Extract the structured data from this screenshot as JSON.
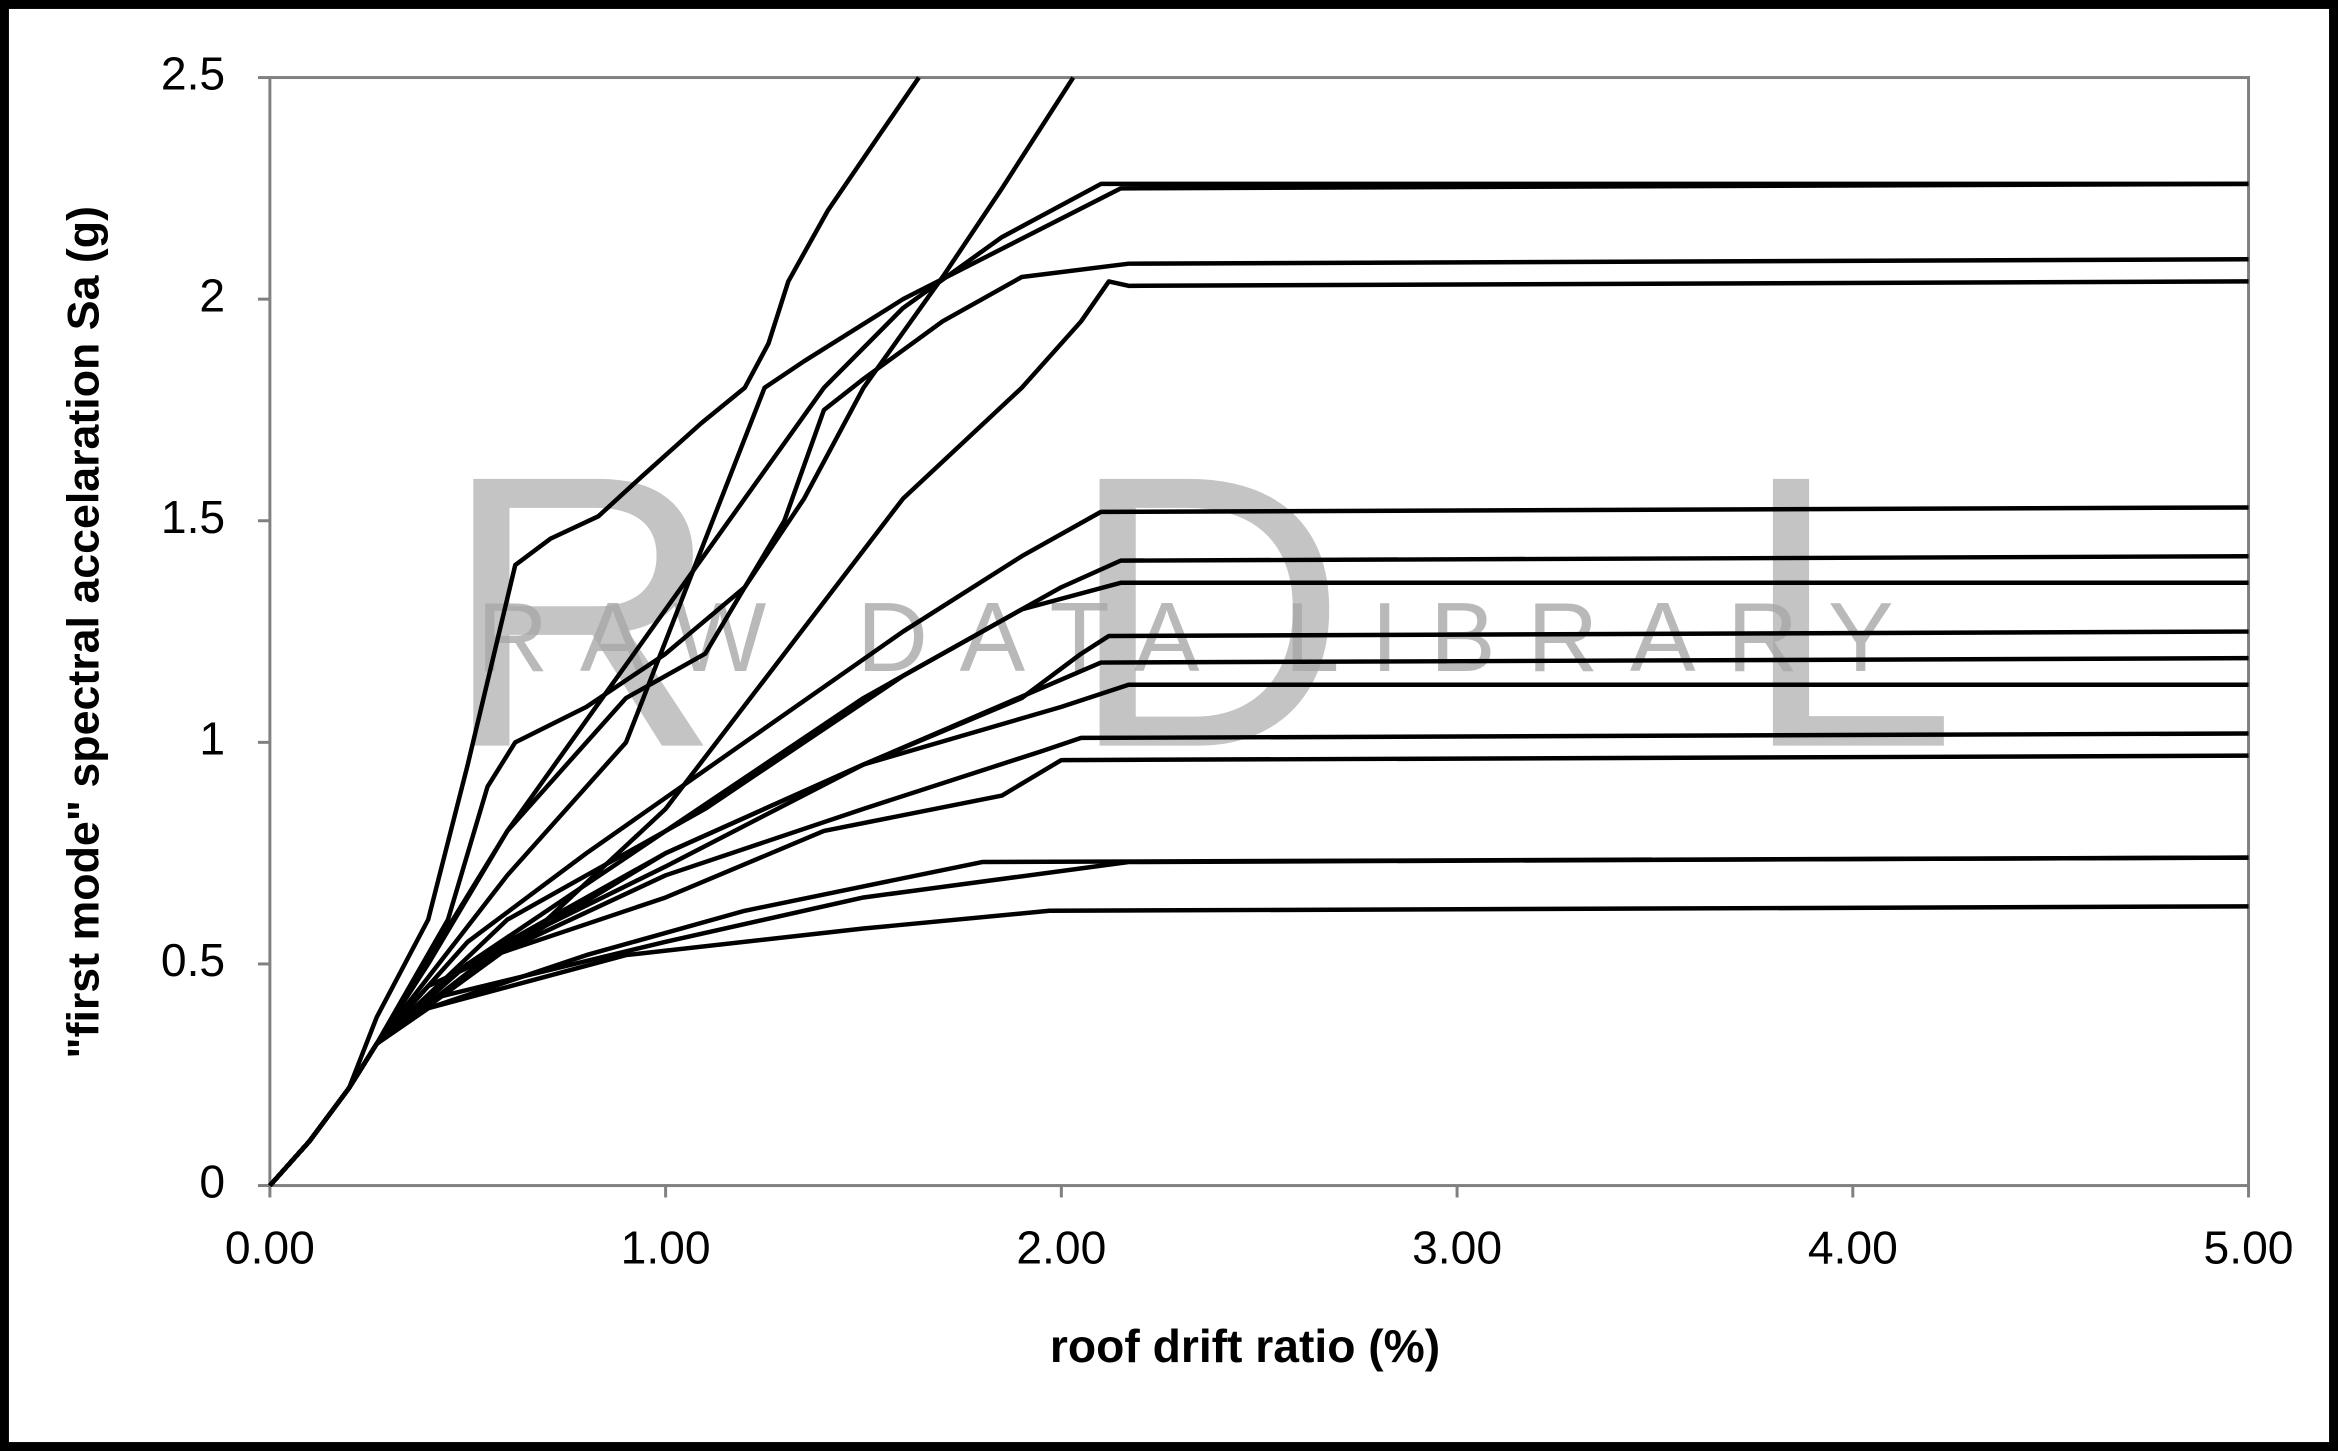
{
  "chart_data": {
    "type": "line",
    "xlabel": "roof drift ratio (%)",
    "ylabel": "\"first mode\" spectral accelaration Sa (g)",
    "watermark_letters": [
      "R",
      "D",
      "L"
    ],
    "watermark": "RAW DATA LIBRARY",
    "xlim": [
      0,
      5
    ],
    "ylim": [
      0,
      2.5
    ],
    "xticks": [
      {
        "value": 0,
        "label": "0.00"
      },
      {
        "value": 1,
        "label": "1.00"
      },
      {
        "value": 2,
        "label": "2.00"
      },
      {
        "value": 3,
        "label": "3.00"
      },
      {
        "value": 4,
        "label": "4.00"
      },
      {
        "value": 5,
        "label": "5.00"
      }
    ],
    "yticks": [
      0,
      0.5,
      1,
      1.5,
      2,
      2.5
    ],
    "grid": false,
    "series": [
      {
        "color": "#000000",
        "x": [
          0,
          0.1,
          0.2,
          0.27,
          0.4,
          0.5,
          0.62,
          0.71,
          0.83,
          0.94,
          1.09,
          1.2,
          1.26,
          1.31,
          1.41,
          1.54,
          1.64
        ],
        "values": [
          0,
          0.1,
          0.22,
          0.38,
          0.6,
          0.95,
          1.4,
          1.46,
          1.51,
          1.6,
          1.72,
          1.8,
          1.9,
          2.04,
          2.2,
          2.37,
          2.5
        ]
      },
      {
        "color": "#000000",
        "x": [
          0,
          0.1,
          0.2,
          0.27,
          0.45,
          0.55,
          0.62,
          0.8,
          1.0,
          1.2,
          1.35,
          1.5,
          1.7,
          1.85,
          2.03
        ],
        "values": [
          0,
          0.1,
          0.22,
          0.32,
          0.6,
          0.9,
          1.0,
          1.08,
          1.2,
          1.35,
          1.55,
          1.8,
          2.05,
          2.25,
          2.5
        ]
      },
      {
        "color": "#000000",
        "x": [
          0,
          0.1,
          0.2,
          0.27,
          0.4,
          0.6,
          0.8,
          1.0,
          1.2,
          1.4,
          1.6,
          1.85,
          2.1,
          5
        ],
        "values": [
          0,
          0.1,
          0.22,
          0.32,
          0.5,
          0.8,
          1.05,
          1.3,
          1.55,
          1.8,
          1.98,
          2.14,
          2.26,
          2.26
        ]
      },
      {
        "color": "#000000",
        "x": [
          0,
          0.1,
          0.2,
          0.27,
          0.6,
          0.9,
          1.25,
          1.35,
          1.6,
          2.15,
          5
        ],
        "values": [
          0,
          0.1,
          0.22,
          0.32,
          0.7,
          1.0,
          1.8,
          1.86,
          2.0,
          2.25,
          2.26
        ]
      },
      {
        "color": "#000000",
        "x": [
          0,
          0.1,
          0.2,
          0.27,
          0.6,
          0.9,
          1.1,
          1.3,
          1.4,
          1.5,
          1.7,
          1.9,
          2.17,
          5
        ],
        "values": [
          0,
          0.1,
          0.22,
          0.32,
          0.8,
          1.1,
          1.2,
          1.5,
          1.75,
          1.82,
          1.95,
          2.05,
          2.08,
          2.09
        ]
      },
      {
        "color": "#000000",
        "x": [
          0,
          0.1,
          0.2,
          0.27,
          0.7,
          1.0,
          1.3,
          1.6,
          1.9,
          2.05,
          2.12,
          2.17,
          5
        ],
        "values": [
          0,
          0.1,
          0.22,
          0.32,
          0.6,
          0.85,
          1.2,
          1.55,
          1.8,
          1.95,
          2.04,
          2.03,
          2.04
        ]
      },
      {
        "color": "#000000",
        "x": [
          0,
          0.1,
          0.2,
          0.27,
          0.5,
          0.8,
          1.2,
          1.6,
          1.9,
          2.1,
          5
        ],
        "values": [
          0,
          0.1,
          0.22,
          0.32,
          0.55,
          0.75,
          1.0,
          1.25,
          1.42,
          1.52,
          1.53
        ]
      },
      {
        "color": "#000000",
        "x": [
          0,
          0.1,
          0.2,
          0.27,
          0.5,
          1.0,
          1.5,
          2.0,
          2.15,
          5
        ],
        "values": [
          0,
          0.1,
          0.22,
          0.32,
          0.5,
          0.8,
          1.1,
          1.35,
          1.41,
          1.42
        ]
      },
      {
        "color": "#000000",
        "x": [
          0,
          0.1,
          0.2,
          0.27,
          0.6,
          1.1,
          1.6,
          1.9,
          2.15,
          5
        ],
        "values": [
          0,
          0.1,
          0.22,
          0.32,
          0.6,
          0.85,
          1.15,
          1.3,
          1.36,
          1.36
        ]
      },
      {
        "color": "#000000",
        "x": [
          0,
          0.1,
          0.2,
          0.27,
          0.5,
          1.0,
          1.5,
          1.9,
          2.05,
          2.12,
          5
        ],
        "values": [
          0,
          0.1,
          0.22,
          0.32,
          0.5,
          0.75,
          0.95,
          1.1,
          1.2,
          1.24,
          1.25
        ]
      },
      {
        "color": "#000000",
        "x": [
          0,
          0.1,
          0.2,
          0.27,
          0.5,
          1.0,
          1.5,
          2.1,
          5
        ],
        "values": [
          0,
          0.1,
          0.22,
          0.32,
          0.5,
          0.72,
          0.95,
          1.18,
          1.19
        ]
      },
      {
        "color": "#000000",
        "x": [
          0,
          0.1,
          0.2,
          0.27,
          0.5,
          1.0,
          1.5,
          2.0,
          2.17,
          5
        ],
        "values": [
          0,
          0.1,
          0.22,
          0.32,
          0.48,
          0.75,
          0.95,
          1.08,
          1.13,
          1.13
        ]
      },
      {
        "color": "#000000",
        "x": [
          0,
          0.1,
          0.2,
          0.27,
          0.4,
          1.0,
          1.5,
          1.95,
          2.05,
          5
        ],
        "values": [
          0,
          0.1,
          0.22,
          0.32,
          0.45,
          0.7,
          0.85,
          0.98,
          1.01,
          1.02
        ]
      },
      {
        "color": "#000000",
        "x": [
          0,
          0.1,
          0.2,
          0.27,
          0.5,
          1.0,
          1.4,
          1.85,
          2.0,
          5
        ],
        "values": [
          0,
          0.1,
          0.22,
          0.32,
          0.5,
          0.65,
          0.8,
          0.88,
          0.96,
          0.97
        ]
      },
      {
        "color": "#000000",
        "x": [
          0,
          0.1,
          0.2,
          0.27,
          0.4,
          0.8,
          1.2,
          1.8,
          5
        ],
        "values": [
          0,
          0.1,
          0.22,
          0.32,
          0.4,
          0.52,
          0.62,
          0.73,
          0.74
        ]
      },
      {
        "color": "#000000",
        "x": [
          0,
          0.1,
          0.2,
          0.27,
          0.4,
          1.0,
          1.5,
          2.17,
          5
        ],
        "values": [
          0,
          0.1,
          0.22,
          0.32,
          0.42,
          0.55,
          0.65,
          0.73,
          0.74
        ]
      },
      {
        "color": "#000000",
        "x": [
          0,
          0.1,
          0.2,
          0.27,
          0.4,
          0.9,
          1.5,
          1.97,
          5
        ],
        "values": [
          0,
          0.1,
          0.22,
          0.32,
          0.4,
          0.52,
          0.58,
          0.62,
          0.63
        ]
      }
    ]
  }
}
